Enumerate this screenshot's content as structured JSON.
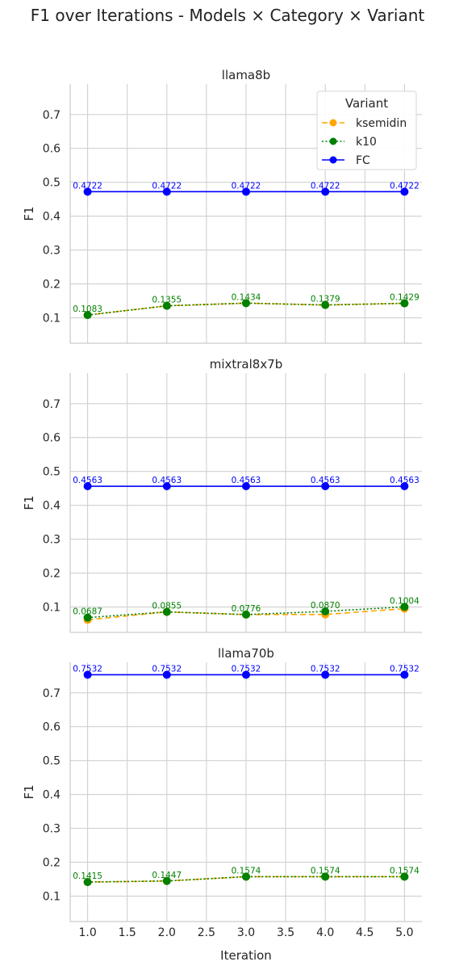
{
  "chart_data": {
    "type": "line",
    "title": "F1 over Iterations - Models × Category × Variant",
    "xlabel": "Iteration",
    "ylabel": "F1",
    "xlim": [
      0.78,
      5.22
    ],
    "ylim": [
      0.025,
      0.79
    ],
    "xticks": [
      "1.0",
      "1.5",
      "2.0",
      "2.5",
      "3.0",
      "3.5",
      "4.0",
      "4.5",
      "5.0"
    ],
    "yticks": [
      "0.1",
      "0.2",
      "0.3",
      "0.4",
      "0.5",
      "0.6",
      "0.7"
    ],
    "grid": true,
    "legend": {
      "title": "Variant",
      "placement": "top-right",
      "entries": [
        {
          "name": "ksemidin",
          "color": "#FFA500",
          "dash": "dashed"
        },
        {
          "name": "k10",
          "color": "#008000",
          "dash": "dotted"
        },
        {
          "name": "FC",
          "color": "#0000FF",
          "dash": "solid"
        }
      ]
    },
    "panels": [
      {
        "title": "llama8b",
        "x": [
          1,
          2,
          3,
          4,
          5
        ],
        "series": [
          {
            "name": "ksemidin",
            "color": "#FFA500",
            "dash": "dashed",
            "values": [
              0.1083,
              0.1355,
              0.1434,
              0.1379,
              0.1429
            ],
            "labels": []
          },
          {
            "name": "k10",
            "color": "#008000",
            "dash": "dotted",
            "values": [
              0.1083,
              0.1355,
              0.1434,
              0.1379,
              0.1429
            ],
            "labels": [
              "0.1083",
              "0.1355",
              "0.1434",
              "0.1379",
              "0.1429"
            ]
          },
          {
            "name": "FC",
            "color": "#0000FF",
            "dash": "solid",
            "values": [
              0.4722,
              0.4722,
              0.4722,
              0.4722,
              0.4722
            ],
            "labels": [
              "0.4722",
              "0.4722",
              "0.4722",
              "0.4722",
              "0.4722"
            ]
          }
        ]
      },
      {
        "title": "mixtral8x7b",
        "x": [
          1,
          2,
          3,
          4,
          5
        ],
        "series": [
          {
            "name": "ksemidin",
            "color": "#FFA500",
            "dash": "dashed",
            "values": [
              0.062,
              0.0855,
              0.0776,
              0.078,
              0.095
            ],
            "labels": []
          },
          {
            "name": "k10",
            "color": "#008000",
            "dash": "dotted",
            "values": [
              0.0687,
              0.0855,
              0.0776,
              0.087,
              0.1004
            ],
            "labels": [
              "0.0687",
              "0.0855",
              "0.0776",
              "0.0870",
              "0.1004"
            ]
          },
          {
            "name": "FC",
            "color": "#0000FF",
            "dash": "solid",
            "values": [
              0.4563,
              0.4563,
              0.4563,
              0.4563,
              0.4563
            ],
            "labels": [
              "0.4563",
              "0.4563",
              "0.4563",
              "0.4563",
              "0.4563"
            ]
          }
        ]
      },
      {
        "title": "llama70b",
        "x": [
          1,
          2,
          3,
          4,
          5
        ],
        "series": [
          {
            "name": "ksemidin",
            "color": "#FFA500",
            "dash": "dashed",
            "values": [
              0.1415,
              0.1447,
              0.1574,
              0.1574,
              0.1574
            ],
            "labels": []
          },
          {
            "name": "k10",
            "color": "#008000",
            "dash": "dotted",
            "values": [
              0.1415,
              0.1447,
              0.1574,
              0.1574,
              0.1574
            ],
            "labels": [
              "0.1415",
              "0.1447",
              "0.1574",
              "0.1574",
              "0.1574"
            ]
          },
          {
            "name": "FC",
            "color": "#0000FF",
            "dash": "solid",
            "values": [
              0.7532,
              0.7532,
              0.7532,
              0.7532,
              0.7532
            ],
            "labels": [
              "0.7532",
              "0.7532",
              "0.7532",
              "0.7532",
              "0.7532"
            ]
          }
        ]
      }
    ]
  }
}
